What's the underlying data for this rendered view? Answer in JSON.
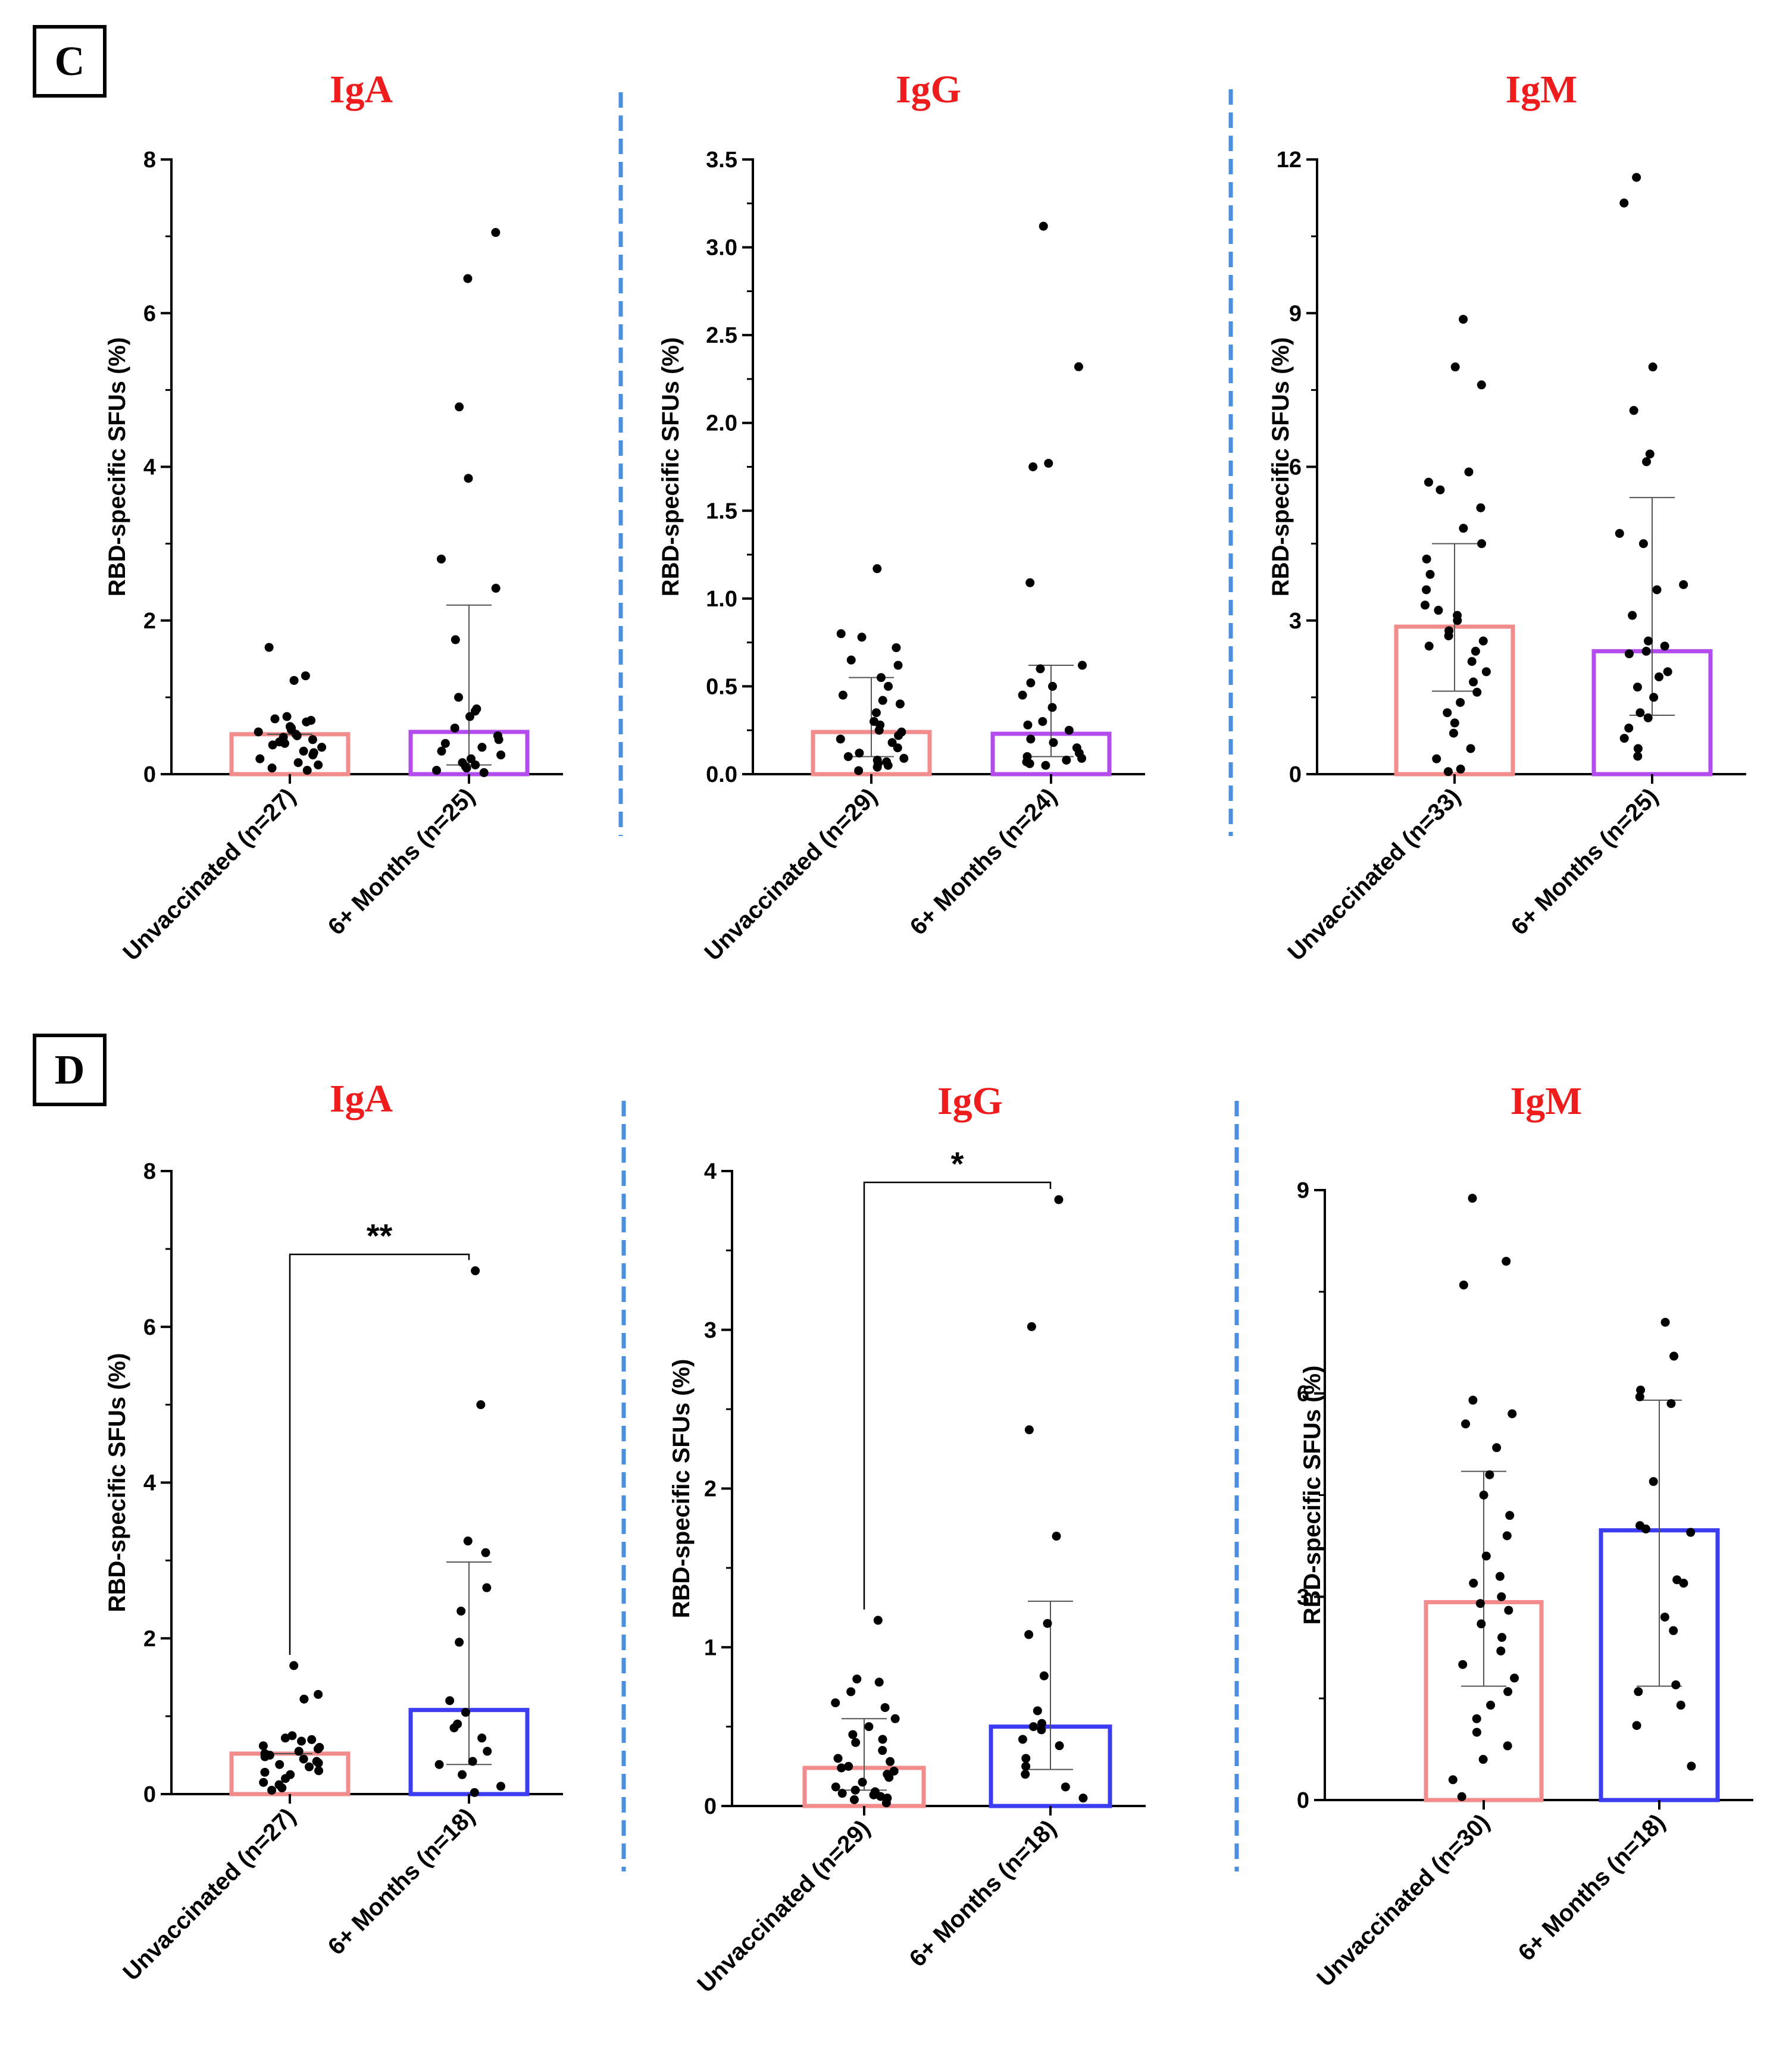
{
  "colors": {
    "title": "#ee1c1c",
    "unvaccinated": "#f28b8b",
    "six_months_C": "#b34bef",
    "six_months_D": "#3c3cf2",
    "divider": "#4a8fe0",
    "points": "#000000"
  },
  "figure": {
    "panels": [
      {
        "id": "C",
        "label": "C"
      },
      {
        "id": "D",
        "label": "D"
      }
    ]
  },
  "chart_data": [
    {
      "panel": "C",
      "type": "bar",
      "title": "IgA",
      "ylabel": "RBD-specific SFUs (%)",
      "ylim": [
        0,
        8
      ],
      "yticks": [
        0,
        2,
        4,
        6,
        8
      ],
      "ytick_labels": [
        "0",
        "2",
        "4",
        "6",
        "8"
      ],
      "categories": [
        "Unvaccinated (n=27)",
        "6+ Months (n=25)"
      ],
      "bar_colors": [
        "#f28b8b",
        "#b34bef"
      ],
      "values": [
        0.52,
        0.55
      ],
      "errors_upper": [
        0.52,
        2.2
      ],
      "errors_lower": [
        0.52,
        0.12
      ],
      "points": [
        [
          1.65,
          1.28,
          1.22,
          0.75,
          0.72,
          0.7,
          0.68,
          0.62,
          0.6,
          0.58,
          0.55,
          0.52,
          0.5,
          0.48,
          0.45,
          0.42,
          0.4,
          0.38,
          0.35,
          0.3,
          0.28,
          0.25,
          0.2,
          0.15,
          0.12,
          0.08,
          0.05
        ],
        [
          7.05,
          6.45,
          4.78,
          3.85,
          2.8,
          2.42,
          1.75,
          1.0,
          0.85,
          0.82,
          0.75,
          0.6,
          0.5,
          0.45,
          0.4,
          0.35,
          0.3,
          0.25,
          0.2,
          0.15,
          0.12,
          0.1,
          0.08,
          0.05,
          0.02
        ]
      ]
    },
    {
      "panel": "C",
      "type": "bar",
      "title": "IgG",
      "ylabel": "RBD-specific SFUs (%)",
      "ylim": [
        0,
        3.5
      ],
      "yticks": [
        0,
        0.5,
        1.0,
        1.5,
        2.0,
        2.5,
        3.0,
        3.5
      ],
      "ytick_labels": [
        "0.0",
        "0.5",
        "1.0",
        "1.5",
        "2.0",
        "2.5",
        "3.0",
        "3.5"
      ],
      "categories": [
        "Unvaccinated (n=29)",
        "6+ Months (n=24)"
      ],
      "bar_colors": [
        "#f28b8b",
        "#b34bef"
      ],
      "values": [
        0.24,
        0.23
      ],
      "errors_upper": [
        0.55,
        0.62
      ],
      "errors_lower": [
        0.1,
        0.1
      ],
      "points": [
        [
          1.17,
          0.8,
          0.78,
          0.72,
          0.65,
          0.62,
          0.55,
          0.5,
          0.45,
          0.42,
          0.4,
          0.35,
          0.3,
          0.28,
          0.25,
          0.24,
          0.22,
          0.2,
          0.18,
          0.15,
          0.12,
          0.1,
          0.09,
          0.08,
          0.07,
          0.06,
          0.05,
          0.04,
          0.02
        ],
        [
          3.12,
          2.32,
          1.77,
          1.75,
          1.09,
          0.62,
          0.6,
          0.52,
          0.5,
          0.45,
          0.38,
          0.3,
          0.28,
          0.25,
          0.2,
          0.18,
          0.15,
          0.12,
          0.1,
          0.09,
          0.08,
          0.07,
          0.06,
          0.05
        ]
      ]
    },
    {
      "panel": "C",
      "type": "bar",
      "title": "IgM",
      "ylabel": "RBD-specific SFUs (%)",
      "ylim": [
        0,
        12
      ],
      "yticks": [
        0,
        3,
        6,
        9,
        12
      ],
      "ytick_labels": [
        "0",
        "3",
        "6",
        "9",
        "12"
      ],
      "categories": [
        "Unvaccinated (n=33)",
        "6+ Months (n=25)"
      ],
      "bar_colors": [
        "#f28b8b",
        "#b34bef"
      ],
      "values": [
        2.88,
        2.4
      ],
      "errors_upper": [
        4.5,
        5.4
      ],
      "errors_lower": [
        1.62,
        1.15
      ],
      "points": [
        [
          8.88,
          7.95,
          7.6,
          5.9,
          5.7,
          5.55,
          5.2,
          4.8,
          4.5,
          4.2,
          3.9,
          3.6,
          3.3,
          3.2,
          3.1,
          3.0,
          2.8,
          2.7,
          2.6,
          2.5,
          2.4,
          2.2,
          2.0,
          1.8,
          1.6,
          1.4,
          1.2,
          1.0,
          0.8,
          0.5,
          0.3,
          0.1,
          0.05
        ],
        [
          11.65,
          11.15,
          7.95,
          7.1,
          6.25,
          6.1,
          4.7,
          4.5,
          3.7,
          3.6,
          3.1,
          2.6,
          2.5,
          2.4,
          2.35,
          2.0,
          1.9,
          1.7,
          1.5,
          1.2,
          1.1,
          0.9,
          0.7,
          0.5,
          0.35
        ]
      ]
    },
    {
      "panel": "D",
      "type": "bar",
      "title": "IgA",
      "ylabel": "RBD-specific SFUs (%)",
      "ylim": [
        0,
        8
      ],
      "yticks": [
        0,
        2,
        4,
        6,
        8
      ],
      "ytick_labels": [
        "0",
        "2",
        "4",
        "6",
        "8"
      ],
      "categories": [
        "Unvaccinated (n=27)",
        "6+ Months (n=18)"
      ],
      "bar_colors": [
        "#f28b8b",
        "#3c3cf2"
      ],
      "values": [
        0.52,
        1.08
      ],
      "errors_upper": [
        0.52,
        2.98
      ],
      "errors_lower": [
        0.52,
        0.38
      ],
      "significance": "**",
      "points": [
        [
          1.65,
          1.28,
          1.22,
          0.75,
          0.72,
          0.7,
          0.68,
          0.62,
          0.6,
          0.58,
          0.55,
          0.52,
          0.5,
          0.48,
          0.45,
          0.42,
          0.4,
          0.38,
          0.35,
          0.3,
          0.28,
          0.25,
          0.2,
          0.15,
          0.12,
          0.08,
          0.05
        ],
        [
          6.72,
          5.0,
          3.25,
          3.1,
          2.65,
          2.35,
          1.95,
          1.2,
          1.05,
          0.9,
          0.85,
          0.72,
          0.55,
          0.42,
          0.38,
          0.25,
          0.1,
          0.02
        ]
      ]
    },
    {
      "panel": "D",
      "type": "bar",
      "title": "IgG",
      "ylabel": "RBD-specific SFUs (%)",
      "ylim": [
        0,
        4
      ],
      "yticks": [
        0,
        1,
        2,
        3,
        4
      ],
      "ytick_labels": [
        "0",
        "1",
        "2",
        "3",
        "4"
      ],
      "categories": [
        "Unvaccinated (n=29)",
        "6+ Months (n=18)"
      ],
      "bar_colors": [
        "#f28b8b",
        "#3c3cf2"
      ],
      "values": [
        0.24,
        0.5
      ],
      "errors_upper": [
        0.55,
        1.29
      ],
      "errors_lower": [
        0.1,
        0.23
      ],
      "significance": "*",
      "points": [
        [
          1.17,
          0.8,
          0.78,
          0.72,
          0.65,
          0.62,
          0.55,
          0.5,
          0.45,
          0.42,
          0.4,
          0.35,
          0.3,
          0.28,
          0.25,
          0.24,
          0.22,
          0.2,
          0.18,
          0.15,
          0.12,
          0.1,
          0.09,
          0.08,
          0.07,
          0.06,
          0.05,
          0.04,
          0.02
        ],
        [
          3.82,
          3.02,
          2.37,
          1.7,
          1.15,
          1.08,
          0.82,
          0.6,
          0.52,
          0.5,
          0.48,
          0.42,
          0.38,
          0.3,
          0.25,
          0.2,
          0.12,
          0.05
        ]
      ]
    },
    {
      "panel": "D",
      "type": "bar",
      "title": "IgM",
      "ylabel": "RBD-specific SFUs (%)",
      "ylim": [
        0,
        9
      ],
      "yticks": [
        0,
        3,
        6,
        9
      ],
      "ytick_labels": [
        "0",
        "3",
        "6",
        "9"
      ],
      "categories": [
        "Unvaccinated (n=30)",
        "6+ Months (n=18)"
      ],
      "bar_colors": [
        "#f28b8b",
        "#3c3cf2"
      ],
      "values": [
        2.92,
        3.98
      ],
      "errors_upper": [
        4.85,
        5.9
      ],
      "errors_lower": [
        1.68,
        1.68
      ],
      "points": [
        [
          8.88,
          7.95,
          7.6,
          5.9,
          5.7,
          5.55,
          5.2,
          4.8,
          4.5,
          4.2,
          3.9,
          3.6,
          3.3,
          3.2,
          3.0,
          2.9,
          2.8,
          2.6,
          2.4,
          2.2,
          2.0,
          1.8,
          1.6,
          1.4,
          1.2,
          1.0,
          0.8,
          0.6,
          0.3,
          0.05
        ],
        [
          7.05,
          6.55,
          6.05,
          5.95,
          5.85,
          4.7,
          4.05,
          4.0,
          3.95,
          3.25,
          3.2,
          2.7,
          2.5,
          1.7,
          1.6,
          1.4,
          1.1,
          0.5
        ]
      ]
    }
  ]
}
